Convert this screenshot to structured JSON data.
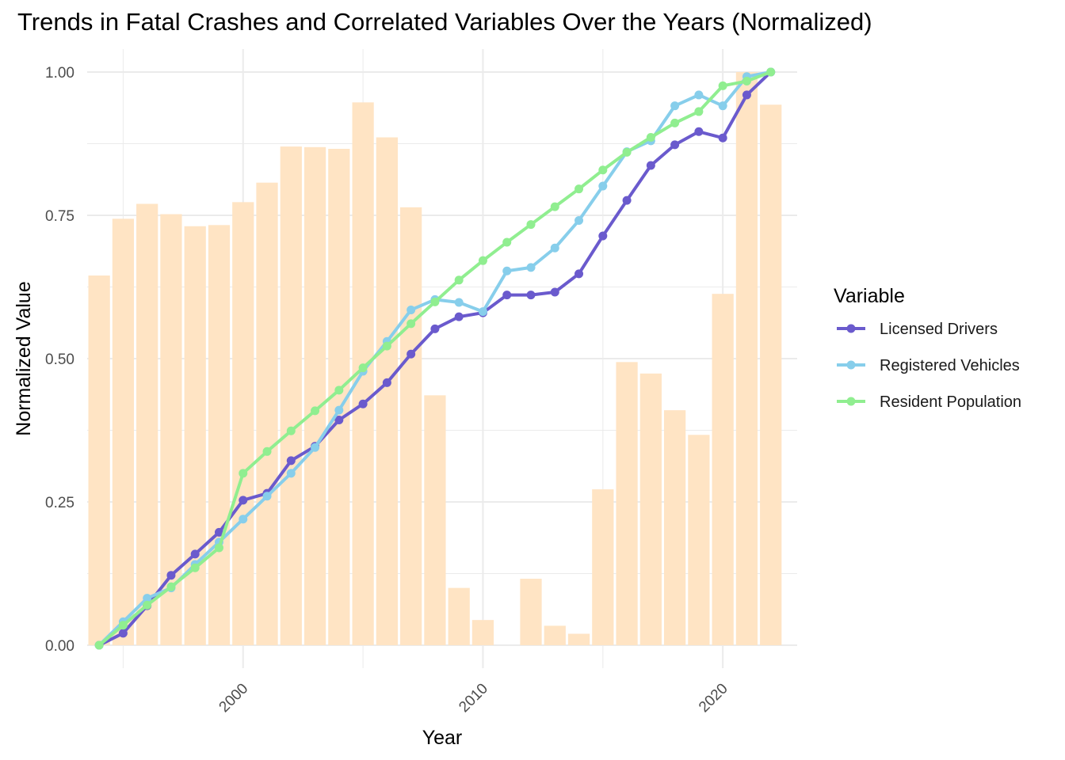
{
  "chart_data": {
    "type": "bar+line",
    "title": "Trends in Fatal Crashes and Correlated Variables Over the Years (Normalized)",
    "xlabel": "Year",
    "ylabel": "Normalized Value",
    "xlim": [
      1993.5,
      2023.1
    ],
    "ylim": [
      -0.04,
      1.04
    ],
    "x_ticks": [
      2000,
      2010,
      2020
    ],
    "x_tick_labels": [
      "2000",
      "2010",
      "2020"
    ],
    "y_ticks": [
      0,
      0.25,
      0.5,
      0.75,
      1.0
    ],
    "y_tick_labels": [
      "0.00",
      "0.25",
      "0.50",
      "0.75",
      "1.00"
    ],
    "grid": true,
    "legend_position": "right",
    "legend_title": "Variable",
    "bars": {
      "color": "#FFE4C4",
      "x": [
        1994,
        1995,
        1996,
        1997,
        1998,
        1999,
        2000,
        2001,
        2002,
        2003,
        2004,
        2005,
        2006,
        2007,
        2008,
        2009,
        2010,
        2011,
        2012,
        2013,
        2014,
        2015,
        2016,
        2017,
        2018,
        2019,
        2020,
        2021,
        2022
      ],
      "values": [
        0.645,
        0.744,
        0.77,
        0.752,
        0.731,
        0.733,
        0.773,
        0.807,
        0.87,
        0.869,
        0.866,
        0.947,
        0.886,
        0.764,
        0.436,
        0.1,
        0.044,
        0.0,
        0.116,
        0.034,
        0.02,
        0.272,
        0.494,
        0.474,
        0.41,
        0.367,
        0.613,
        1.0,
        0.943
      ]
    },
    "x": [
      1994,
      1995,
      1996,
      1997,
      1998,
      1999,
      2000,
      2001,
      2002,
      2003,
      2004,
      2005,
      2006,
      2007,
      2008,
      2009,
      2010,
      2011,
      2012,
      2013,
      2014,
      2015,
      2016,
      2017,
      2018,
      2019,
      2020,
      2021,
      2022
    ],
    "series": [
      {
        "name": "Licensed Drivers",
        "color": "#6A5ACD",
        "values": [
          0.0,
          0.021,
          0.069,
          0.122,
          0.159,
          0.197,
          0.253,
          0.265,
          0.322,
          0.347,
          0.393,
          0.421,
          0.458,
          0.508,
          0.552,
          0.573,
          0.58,
          0.611,
          0.611,
          0.616,
          0.648,
          0.714,
          0.776,
          0.837,
          0.873,
          0.896,
          0.885,
          0.96,
          1.0
        ]
      },
      {
        "name": "Registered Vehicles",
        "color": "#87CEEB",
        "values": [
          0.0,
          0.041,
          0.082,
          0.1,
          0.141,
          0.18,
          0.22,
          0.26,
          0.3,
          0.345,
          0.41,
          0.478,
          0.53,
          0.585,
          0.603,
          0.598,
          0.582,
          0.653,
          0.659,
          0.693,
          0.741,
          0.801,
          0.861,
          0.88,
          0.941,
          0.96,
          0.941,
          0.992,
          1.0
        ]
      },
      {
        "name": "Resident Population",
        "color": "#90EE90",
        "values": [
          0.0,
          0.035,
          0.07,
          0.102,
          0.135,
          0.17,
          0.3,
          0.338,
          0.374,
          0.409,
          0.445,
          0.484,
          0.522,
          0.561,
          0.599,
          0.637,
          0.671,
          0.703,
          0.734,
          0.765,
          0.796,
          0.829,
          0.86,
          0.886,
          0.911,
          0.931,
          0.976,
          0.984,
          1.0
        ]
      }
    ]
  },
  "colors": {
    "grid": "#EBEBEB",
    "axis_text": "#4D4D4D"
  }
}
